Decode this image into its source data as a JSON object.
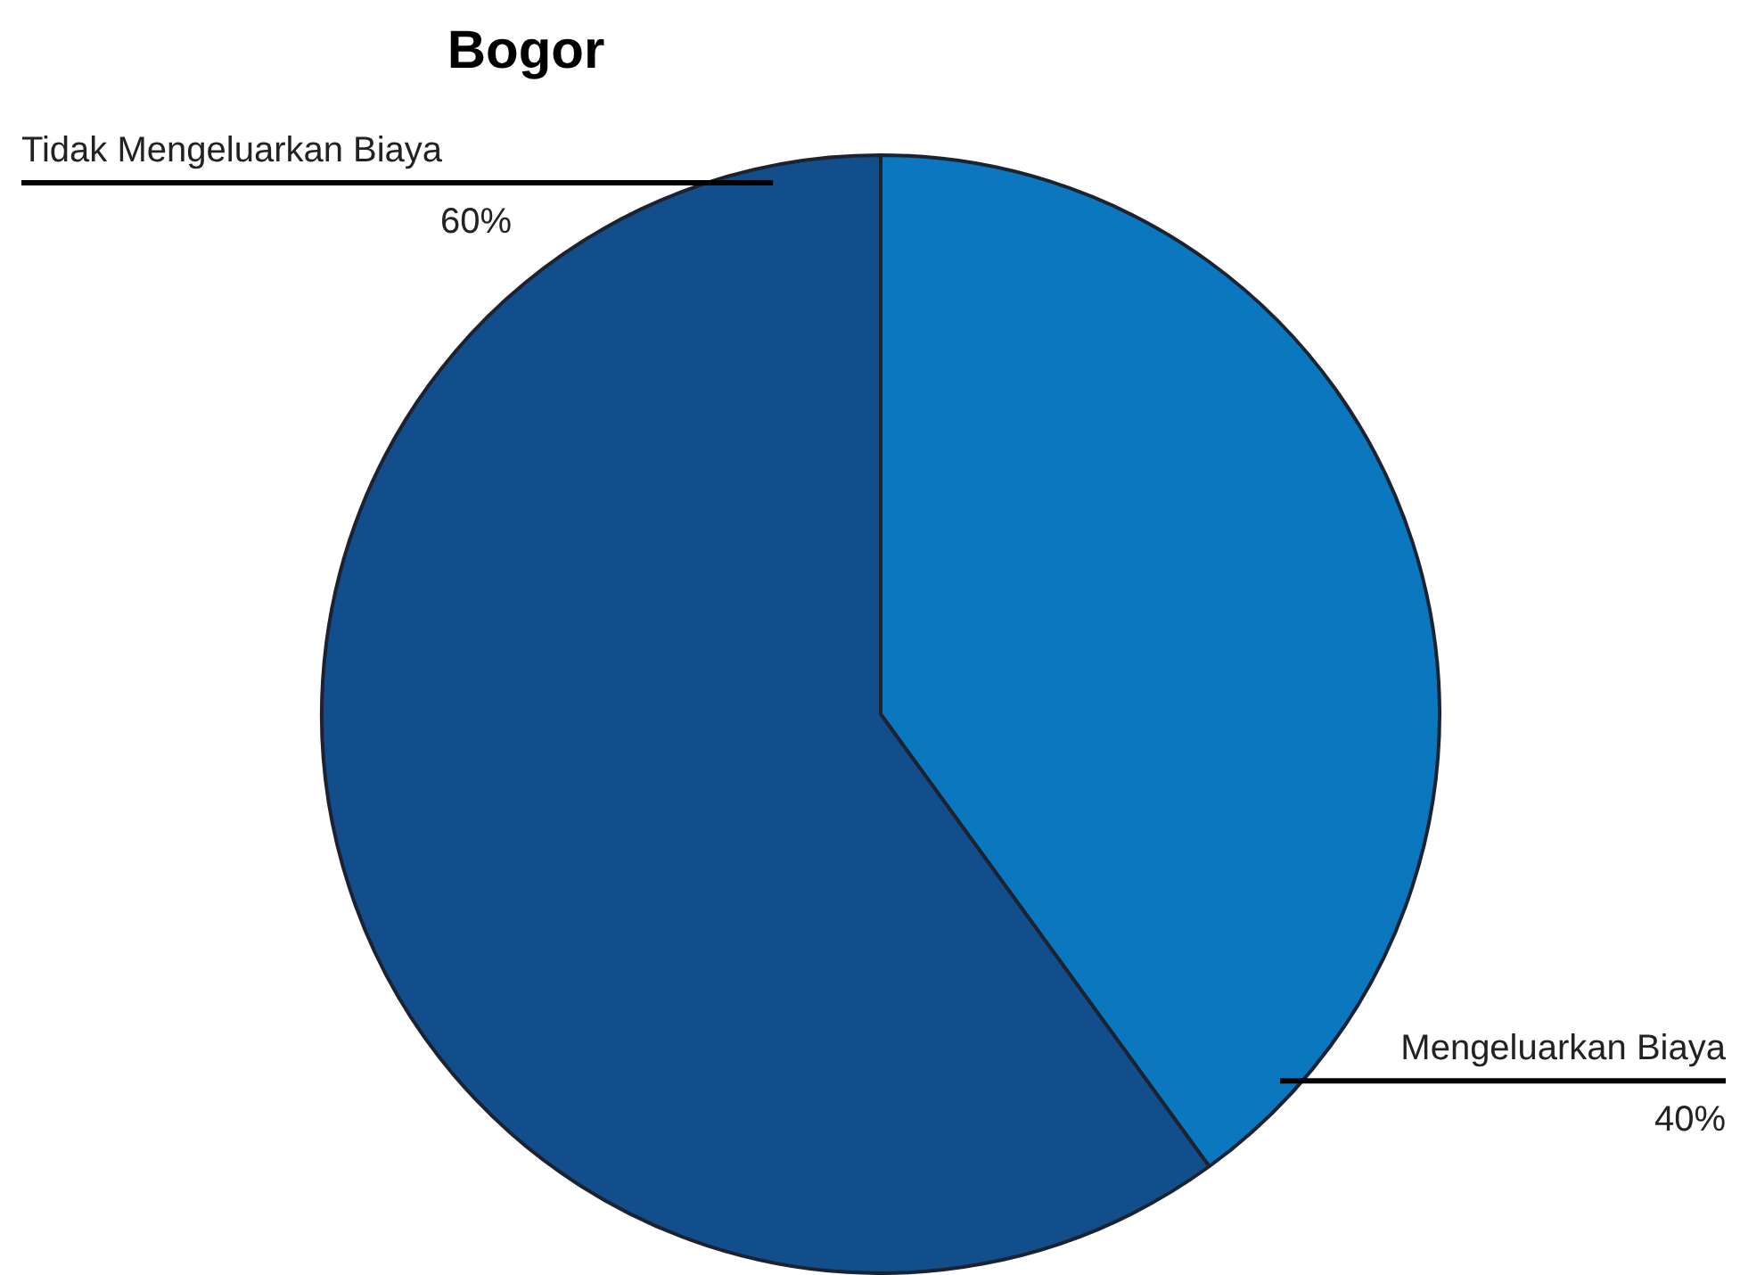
{
  "chart_data": {
    "type": "pie",
    "title": "Bogor",
    "categories": [
      "Mengeluarkan Biaya",
      "Tidak Mengeluarkan Biaya"
    ],
    "values": [
      40,
      60
    ],
    "colors": [
      "#0b77be",
      "#134e8c"
    ],
    "value_labels": [
      "40%",
      "60%"
    ],
    "legend": false
  }
}
